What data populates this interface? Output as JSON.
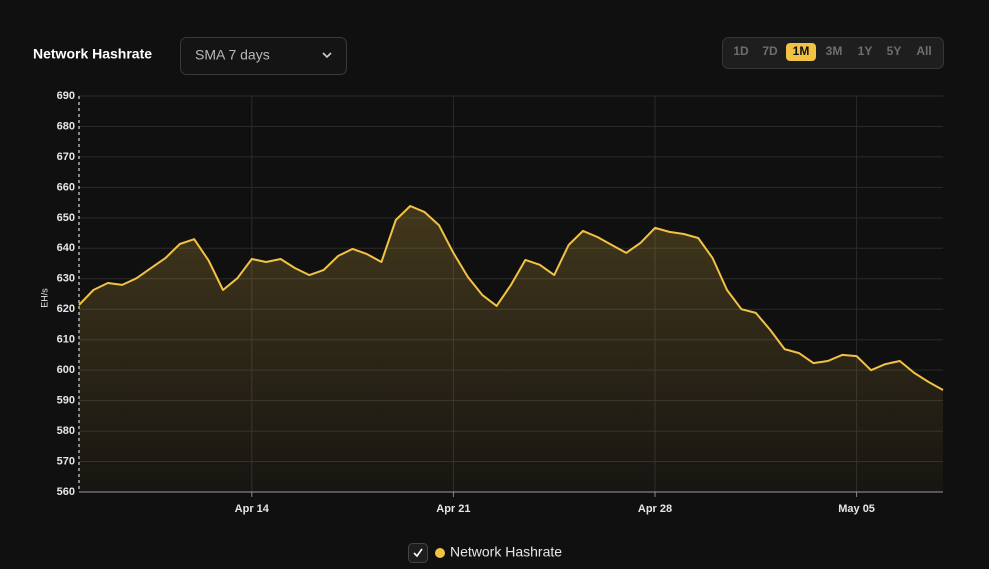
{
  "header": {
    "title": "Network Hashrate",
    "dropdown": "SMA 7 days",
    "ranges": [
      {
        "label": "1D",
        "active": false
      },
      {
        "label": "7D",
        "active": false
      },
      {
        "label": "1M",
        "active": true
      },
      {
        "label": "3M",
        "active": false
      },
      {
        "label": "1Y",
        "active": false
      },
      {
        "label": "5Y",
        "active": false
      },
      {
        "label": "All",
        "active": false
      }
    ]
  },
  "chart_data": {
    "type": "line",
    "y_label": "EH/s",
    "categories": [
      null,
      null,
      null,
      null,
      null,
      null,
      null,
      null,
      null,
      null,
      null,
      null,
      "Apr 14",
      null,
      null,
      null,
      null,
      null,
      null,
      null,
      null,
      null,
      null,
      null,
      null,
      null,
      "Apr 21",
      null,
      null,
      null,
      null,
      null,
      null,
      null,
      null,
      null,
      null,
      null,
      null,
      null,
      "Apr 28",
      null,
      null,
      null,
      null,
      null,
      null,
      null,
      null,
      null,
      null,
      null,
      null,
      null,
      "May 05",
      null,
      null,
      null,
      null,
      null,
      null
    ],
    "series": [
      {
        "name": "Network Hashrate",
        "color": "#f2c245",
        "values": [
          621.4,
          626.3,
          628.6,
          628,
          630.2,
          633.5,
          636.8,
          641.4,
          643,
          636,
          626.3,
          630.2,
          636.5,
          635.5,
          636.5,
          633.5,
          631.2,
          632.9,
          637.5,
          639.8,
          638.1,
          635.5,
          649.3,
          653.9,
          651.9,
          647.6,
          638.5,
          630.6,
          624.7,
          621.1,
          628,
          636.2,
          634.6,
          631.2,
          641.1,
          645.7,
          643.7,
          641.1,
          638.5,
          641.8,
          646.7,
          645.4,
          644.7,
          643.4,
          636.8,
          626.3,
          620,
          618.8,
          613.2,
          606.9,
          605.6,
          602.3,
          603,
          605,
          604.6,
          600,
          602,
          603,
          599.1,
          596.1,
          593.5
        ]
      }
    ],
    "ylim": [
      560,
      690
    ],
    "yticks": [
      560,
      570,
      580,
      590,
      600,
      610,
      620,
      630,
      640,
      650,
      660,
      670,
      680,
      690
    ],
    "grid": true,
    "legend": "bottom"
  }
}
